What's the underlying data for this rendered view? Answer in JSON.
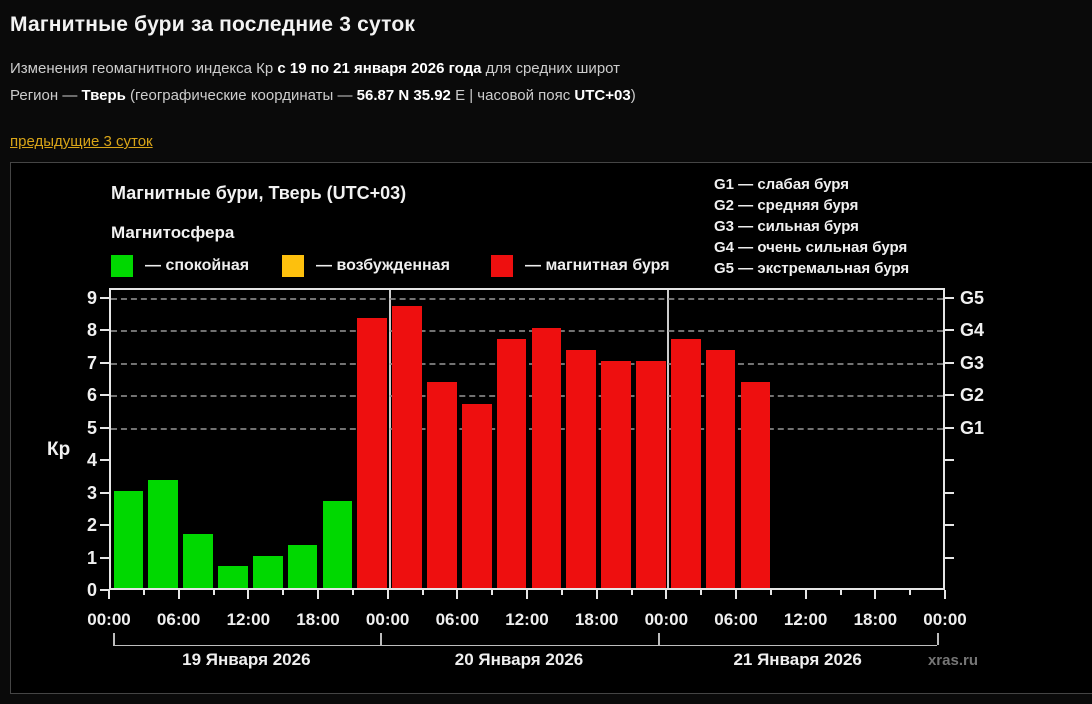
{
  "page": {
    "title": "Магнитные бури за последние 3 суток",
    "subtitle_prefix": "Изменения геомагнитного индекса Кр ",
    "subtitle_bold": "с 19 по 21 января 2026 года",
    "subtitle_suffix": " для средних широт",
    "region_prefix": "Регион — ",
    "region_name": "Тверь",
    "region_mid": " (географические координаты — ",
    "region_coords": "56.87 N 35.92",
    "region_coords_suffix": " E | часовой пояс ",
    "region_tz": "UTC+03",
    "region_close": ")",
    "prev_link": "предыдущие 3 суток"
  },
  "chart": {
    "title": "Магнитные бури, Тверь (UTC+03)",
    "legend_title": "Магнитосфера",
    "legend_items": [
      {
        "key": "quiet",
        "label": "— спокойная",
        "color": "#00d800"
      },
      {
        "key": "excited",
        "label": "— возбужденная",
        "color": "#fdc00d"
      },
      {
        "key": "storm",
        "label": "— магнитная буря",
        "color": "#ee0f0f"
      }
    ],
    "g_legend": [
      "G1 — слабая буря",
      "G2 — средняя буря",
      "G3 — сильная буря",
      "G4 — очень сильная буря",
      "G5 — экстремальная буря"
    ],
    "watermark": "xras.ru"
  },
  "chart_data": {
    "type": "bar",
    "title": "Магнитные бури, Тверь (UTC+03)",
    "ylabel": "Кр",
    "ylim": [
      0,
      9.3
    ],
    "yticks": [
      0,
      1,
      2,
      3,
      4,
      5,
      6,
      7,
      8,
      9
    ],
    "gridline_values": [
      5,
      6,
      7,
      8,
      9
    ],
    "right_axis_labels": [
      {
        "label": "G1",
        "value": 5
      },
      {
        "label": "G2",
        "value": 6
      },
      {
        "label": "G3",
        "value": 7
      },
      {
        "label": "G4",
        "value": 8
      },
      {
        "label": "G5",
        "value": 9
      }
    ],
    "hours_total": 72,
    "hours_per_slot": 3,
    "slots_per_day": 8,
    "xtick_step_hours": 6,
    "xticklabels": [
      "00:00",
      "06:00",
      "12:00",
      "18:00",
      "00:00",
      "06:00",
      "12:00",
      "18:00",
      "00:00",
      "06:00",
      "12:00",
      "18:00",
      "00:00"
    ],
    "day_labels": [
      "19 Января 2026",
      "20 Января 2026",
      "21 Января 2026"
    ],
    "bars": [
      {
        "value": 3.0,
        "status": "quiet"
      },
      {
        "value": 3.33,
        "status": "quiet"
      },
      {
        "value": 1.67,
        "status": "quiet"
      },
      {
        "value": 0.67,
        "status": "quiet"
      },
      {
        "value": 1.0,
        "status": "quiet"
      },
      {
        "value": 1.33,
        "status": "quiet"
      },
      {
        "value": 2.67,
        "status": "quiet"
      },
      {
        "value": 8.33,
        "status": "storm"
      },
      {
        "value": 8.67,
        "status": "storm"
      },
      {
        "value": 6.33,
        "status": "storm"
      },
      {
        "value": 5.67,
        "status": "storm"
      },
      {
        "value": 7.67,
        "status": "storm"
      },
      {
        "value": 8.0,
        "status": "storm"
      },
      {
        "value": 7.33,
        "status": "storm"
      },
      {
        "value": 7.0,
        "status": "storm"
      },
      {
        "value": 7.0,
        "status": "storm"
      },
      {
        "value": 7.67,
        "status": "storm"
      },
      {
        "value": 7.33,
        "status": "storm"
      },
      {
        "value": 6.33,
        "status": "storm"
      }
    ]
  }
}
